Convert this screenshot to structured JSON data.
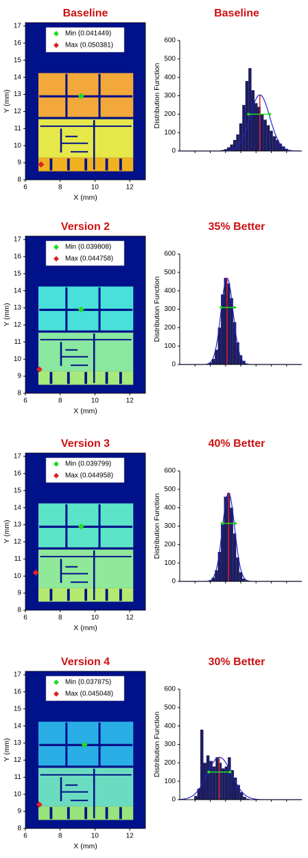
{
  "chart_data": [
    {
      "type": "heatmap",
      "title": "Baseline",
      "xlabel": "X (mm)",
      "ylabel": "Y (mm)",
      "xlim": [
        6,
        12.9
      ],
      "ylim": [
        8,
        17.2
      ],
      "xticks": [
        6,
        8,
        10,
        12
      ],
      "yticks": [
        8,
        9,
        10,
        11,
        12,
        13,
        14,
        15,
        16,
        17
      ],
      "background": "#00118a",
      "colors": [
        "#f2a83a",
        "#e6e84a",
        "#f0b020"
      ],
      "points": [
        {
          "name": "Min (0.041449)",
          "x": 9.2,
          "y": 12.9,
          "color": "#22dd22"
        },
        {
          "name": "Max (0.050381)",
          "x": 6.9,
          "y": 8.9,
          "color": "#dd2222"
        }
      ]
    },
    {
      "type": "histogram",
      "title": "Baseline",
      "ylabel": "Distribution Function",
      "xlim": [
        0.036,
        0.052
      ],
      "ylim": [
        0,
        600
      ],
      "yticks": [
        0,
        100,
        200,
        300,
        400,
        500,
        600
      ],
      "color": "#1c1c60",
      "bins": [
        0.0414,
        0.0418,
        0.0422,
        0.0426,
        0.043,
        0.0434,
        0.0438,
        0.0442,
        0.0446,
        0.045,
        0.0454,
        0.0458,
        0.0462,
        0.0466,
        0.047,
        0.0474,
        0.0478,
        0.0482,
        0.0486,
        0.049,
        0.0494,
        0.0498,
        0.0502,
        0.0506
      ],
      "counts": [
        5,
        10,
        20,
        35,
        60,
        90,
        150,
        250,
        380,
        450,
        330,
        260,
        240,
        200,
        170,
        140,
        110,
        80,
        60,
        40,
        25,
        12,
        5
      ],
      "fit": {
        "mean": 0.0465,
        "std": 0.0013,
        "peak": 305,
        "color": "#2222cc",
        "mean_color": "#dd2222"
      },
      "spread": {
        "from": 0.045,
        "to": 0.0478,
        "y": 200,
        "color": "#22dd22"
      }
    },
    {
      "type": "heatmap",
      "title": "Version 2",
      "xlabel": "X (mm)",
      "ylabel": "Y (mm)",
      "xlim": [
        6,
        12.9
      ],
      "ylim": [
        8,
        17.2
      ],
      "xticks": [
        6,
        8,
        10,
        12
      ],
      "yticks": [
        8,
        9,
        10,
        11,
        12,
        13,
        14,
        15,
        16,
        17
      ],
      "background": "#00118a",
      "colors": [
        "#48e0d8",
        "#8ae8a0",
        "#a6ea7c"
      ],
      "points": [
        {
          "name": "Min (0.039808)",
          "x": 9.2,
          "y": 12.9,
          "color": "#22dd22"
        },
        {
          "name": "Max (0.044758)",
          "x": 6.8,
          "y": 9.4,
          "color": "#dd2222"
        }
      ]
    },
    {
      "type": "histogram",
      "title": "35% Better",
      "ylabel": "Distribution Function",
      "xlim": [
        0.036,
        0.052
      ],
      "ylim": [
        0,
        600
      ],
      "yticks": [
        0,
        100,
        200,
        300,
        400,
        500,
        600
      ],
      "color": "#1c1c60",
      "bins": [
        0.0398,
        0.0402,
        0.0406,
        0.041,
        0.0414,
        0.0418,
        0.0422,
        0.0426,
        0.043,
        0.0434,
        0.0438,
        0.0442,
        0.0446,
        0.045
      ],
      "counts": [
        10,
        30,
        80,
        200,
        380,
        470,
        440,
        360,
        230,
        120,
        50,
        20,
        5
      ],
      "fit": {
        "mean": 0.0422,
        "std": 0.0008,
        "peak": 470,
        "color": "#2222cc",
        "mean_color": "#dd2222"
      },
      "spread": {
        "from": 0.0414,
        "to": 0.0432,
        "y": 310,
        "color": "#22dd22"
      }
    },
    {
      "type": "heatmap",
      "title": "Version 3",
      "xlabel": "X (mm)",
      "ylabel": "Y (mm)",
      "xlim": [
        6,
        12.9
      ],
      "ylim": [
        8,
        17.2
      ],
      "xticks": [
        6,
        8,
        10,
        12
      ],
      "yticks": [
        8,
        9,
        10,
        11,
        12,
        13,
        14,
        15,
        16,
        17
      ],
      "background": "#00118a",
      "colors": [
        "#5ce4c8",
        "#90e89a",
        "#b4ea70"
      ],
      "points": [
        {
          "name": "Min (0.039799)",
          "x": 9.2,
          "y": 12.9,
          "color": "#22dd22"
        },
        {
          "name": "Max (0.044958)",
          "x": 6.6,
          "y": 10.2,
          "color": "#dd2222"
        }
      ]
    },
    {
      "type": "histogram",
      "title": "40% Better",
      "ylabel": "Distribution Function",
      "xlim": [
        0.036,
        0.052
      ],
      "ylim": [
        0,
        600
      ],
      "yticks": [
        0,
        100,
        200,
        300,
        400,
        500,
        600
      ],
      "color": "#1c1c60",
      "bins": [
        0.0398,
        0.0402,
        0.0406,
        0.041,
        0.0414,
        0.0418,
        0.0422,
        0.0426,
        0.043,
        0.0434,
        0.0438,
        0.0442,
        0.0446,
        0.045
      ],
      "counts": [
        5,
        20,
        60,
        160,
        320,
        460,
        480,
        400,
        260,
        130,
        50,
        15,
        5
      ],
      "fit": {
        "mean": 0.0424,
        "std": 0.0008,
        "peak": 480,
        "color": "#2222cc",
        "mean_color": "#dd2222"
      },
      "spread": {
        "from": 0.0416,
        "to": 0.0433,
        "y": 315,
        "color": "#22dd22"
      }
    },
    {
      "type": "heatmap",
      "title": "Version 4",
      "xlabel": "X (mm)",
      "ylabel": "Y (mm)",
      "xlim": [
        6,
        12.9
      ],
      "ylim": [
        8,
        17.2
      ],
      "xticks": [
        6,
        8,
        10,
        12
      ],
      "yticks": [
        8,
        9,
        10,
        11,
        12,
        13,
        14,
        15,
        16,
        17
      ],
      "background": "#00118a",
      "colors": [
        "#2aaee6",
        "#6cdcc0",
        "#96e47a"
      ],
      "points": [
        {
          "name": "Min (0.037875)",
          "x": 9.4,
          "y": 12.9,
          "color": "#22dd22"
        },
        {
          "name": "Max (0.045048)",
          "x": 6.8,
          "y": 9.4,
          "color": "#dd2222"
        }
      ]
    },
    {
      "type": "histogram",
      "title": "30% Better",
      "ylabel": "Distribution Function",
      "xlim": [
        0.036,
        0.052
      ],
      "ylim": [
        0,
        600
      ],
      "yticks": [
        0,
        100,
        200,
        300,
        400,
        500,
        600
      ],
      "color": "#1c1c60",
      "bins": [
        0.0379,
        0.0383,
        0.0387,
        0.0391,
        0.0395,
        0.0399,
        0.0403,
        0.0407,
        0.0411,
        0.0415,
        0.0419,
        0.0423,
        0.0427,
        0.0431,
        0.0435,
        0.0439,
        0.0443,
        0.0447,
        0.0451
      ],
      "counts": [
        20,
        60,
        380,
        200,
        240,
        210,
        180,
        230,
        200,
        170,
        180,
        230,
        160,
        120,
        80,
        40,
        15,
        5
      ],
      "fit": {
        "mean": 0.0412,
        "std": 0.0016,
        "peak": 230,
        "color": "#2222cc",
        "mean_color": "#dd2222"
      },
      "spread": {
        "from": 0.0398,
        "to": 0.0426,
        "y": 150,
        "color": "#22dd22"
      }
    }
  ]
}
